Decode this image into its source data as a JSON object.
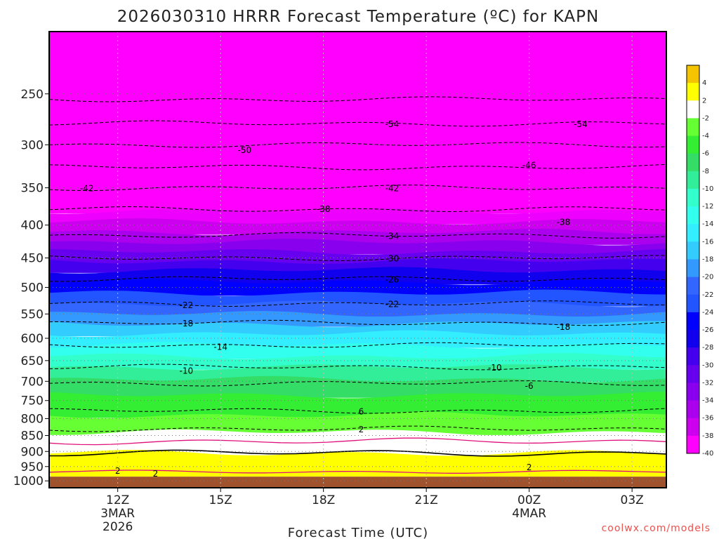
{
  "chart_data": {
    "type": "heatmap",
    "title": "2026030310 HRRR Forecast Temperature (ºC) for KAPN",
    "xlabel": "Forecast Time (UTC)",
    "credit": "coolwx.com/models",
    "y_ticks": [
      "250",
      "300",
      "350",
      "400",
      "450",
      "500",
      "550",
      "600",
      "650",
      "700",
      "750",
      "800",
      "850",
      "900",
      "950",
      "1000"
    ],
    "y_values": [
      250,
      300,
      350,
      400,
      450,
      500,
      550,
      600,
      650,
      700,
      750,
      800,
      850,
      900,
      950,
      1000
    ],
    "y_scale": "log",
    "ylim": [
      1025,
      200
    ],
    "x_ticks": [
      {
        "label": "12Z",
        "sub1": "3MAR",
        "sub2": "2026",
        "hour": 12
      },
      {
        "label": "15Z",
        "sub1": "",
        "sub2": "",
        "hour": 15
      },
      {
        "label": "18Z",
        "sub1": "",
        "sub2": "",
        "hour": 18
      },
      {
        "label": "21Z",
        "sub1": "",
        "sub2": "",
        "hour": 21
      },
      {
        "label": "00Z",
        "sub1": "4MAR",
        "sub2": "",
        "hour": 24
      },
      {
        "label": "03Z",
        "sub1": "",
        "sub2": "",
        "hour": 27
      }
    ],
    "xlim": [
      10,
      28
    ],
    "colorbar_levels": [
      "4",
      "2",
      "-2",
      "-4",
      "-6",
      "-8",
      "-10",
      "-12",
      "-14",
      "-16",
      "-18",
      "-20",
      "-22",
      "-24",
      "-26",
      "-28",
      "-30",
      "-32",
      "-34",
      "-36",
      "-38",
      "-40"
    ],
    "colorbar_colors": [
      "#f5c400",
      "#ffff00",
      "#ffffff",
      "#66ff33",
      "#33ee33",
      "#33dd66",
      "#33ee99",
      "#33ffcc",
      "#33ffee",
      "#33eeff",
      "#33ccff",
      "#3399ff",
      "#3366ff",
      "#2255ff",
      "#0000ff",
      "#1100ee",
      "#4400ee",
      "#6600ee",
      "#8800ee",
      "#aa00ee",
      "#cc00ee",
      "#ff00ff"
    ],
    "bands": [
      {
        "temp": "<=-40",
        "color": "#ff00ff",
        "top": 200,
        "bottom": 380
      },
      {
        "temp": "-40..-38",
        "color": "#ee00ff",
        "top": 380,
        "bottom": 395
      },
      {
        "temp": "-38..-36",
        "color": "#cc00ee",
        "top": 395,
        "bottom": 410
      },
      {
        "temp": "-36..-34",
        "color": "#aa00ee",
        "top": 410,
        "bottom": 425
      },
      {
        "temp": "-34..-32",
        "color": "#8800ee",
        "top": 425,
        "bottom": 440
      },
      {
        "temp": "-32..-30",
        "color": "#6600ee",
        "top": 440,
        "bottom": 455
      },
      {
        "temp": "-30..-28",
        "color": "#4400ee",
        "top": 455,
        "bottom": 470
      },
      {
        "temp": "-28..-26",
        "color": "#1100ee",
        "top": 470,
        "bottom": 490
      },
      {
        "temp": "-26..-24",
        "color": "#0000ff",
        "top": 490,
        "bottom": 510
      },
      {
        "temp": "-24..-22",
        "color": "#2255ff",
        "top": 510,
        "bottom": 530
      },
      {
        "temp": "-22..-20",
        "color": "#3366ff",
        "top": 530,
        "bottom": 550
      },
      {
        "temp": "-20..-18",
        "color": "#3399ff",
        "top": 550,
        "bottom": 570
      },
      {
        "temp": "-18..-16",
        "color": "#33ccff",
        "top": 570,
        "bottom": 590
      },
      {
        "temp": "-16..-14",
        "color": "#33eeff",
        "top": 590,
        "bottom": 615
      },
      {
        "temp": "-14..-12",
        "color": "#33ffee",
        "top": 615,
        "bottom": 640
      },
      {
        "temp": "-12..-10",
        "color": "#33ffcc",
        "top": 640,
        "bottom": 665
      },
      {
        "temp": "-10..-8",
        "color": "#33ee99",
        "top": 665,
        "bottom": 695
      },
      {
        "temp": "-8..-6",
        "color": "#33dd66",
        "top": 695,
        "bottom": 735
      },
      {
        "temp": "-6..-4",
        "color": "#33ee33",
        "top": 735,
        "bottom": 790
      },
      {
        "temp": "-4..-2",
        "color": "#66ff33",
        "top": 790,
        "bottom": 840
      },
      {
        "temp": "-2..2",
        "color": "#ffffff",
        "top": 840,
        "bottom": 905
      },
      {
        "temp": "2..4",
        "color": "#ffff00",
        "top": 905,
        "bottom": 975
      },
      {
        "temp": "ground",
        "color": "#a0522d",
        "top": 985,
        "bottom": 1025
      }
    ],
    "contour_labels": [
      {
        "text": "-54",
        "hour": 20.0,
        "p": 278
      },
      {
        "text": "-54",
        "hour": 25.5,
        "p": 278
      },
      {
        "text": "-50",
        "hour": 15.7,
        "p": 305
      },
      {
        "text": "-46",
        "hour": 24.0,
        "p": 322
      },
      {
        "text": "-42",
        "hour": 11.1,
        "p": 350
      },
      {
        "text": "-42",
        "hour": 20.0,
        "p": 350
      },
      {
        "text": "-38",
        "hour": 18.0,
        "p": 377
      },
      {
        "text": "-38",
        "hour": 25.0,
        "p": 395
      },
      {
        "text": "-34",
        "hour": 20.0,
        "p": 415
      },
      {
        "text": "-30",
        "hour": 20.0,
        "p": 450
      },
      {
        "text": "-26",
        "hour": 20.0,
        "p": 485
      },
      {
        "text": "-22",
        "hour": 14.0,
        "p": 532
      },
      {
        "text": "-22",
        "hour": 20.0,
        "p": 530
      },
      {
        "text": "-18",
        "hour": 14.0,
        "p": 568
      },
      {
        "text": "-18",
        "hour": 25.0,
        "p": 575
      },
      {
        "text": "-14",
        "hour": 15.0,
        "p": 618
      },
      {
        "text": "-10",
        "hour": 14.0,
        "p": 673
      },
      {
        "text": "-10",
        "hour": 23.0,
        "p": 665
      },
      {
        "text": "-6",
        "hour": 24.0,
        "p": 710
      },
      {
        "text": "6",
        "hour": 19.1,
        "p": 778
      },
      {
        "text": "2",
        "hour": 19.1,
        "p": 830
      },
      {
        "text": "2",
        "hour": 12.0,
        "p": 962
      },
      {
        "text": "2",
        "hour": 13.1,
        "p": 972
      },
      {
        "text": "2",
        "hour": 24.0,
        "p": 951
      }
    ]
  }
}
